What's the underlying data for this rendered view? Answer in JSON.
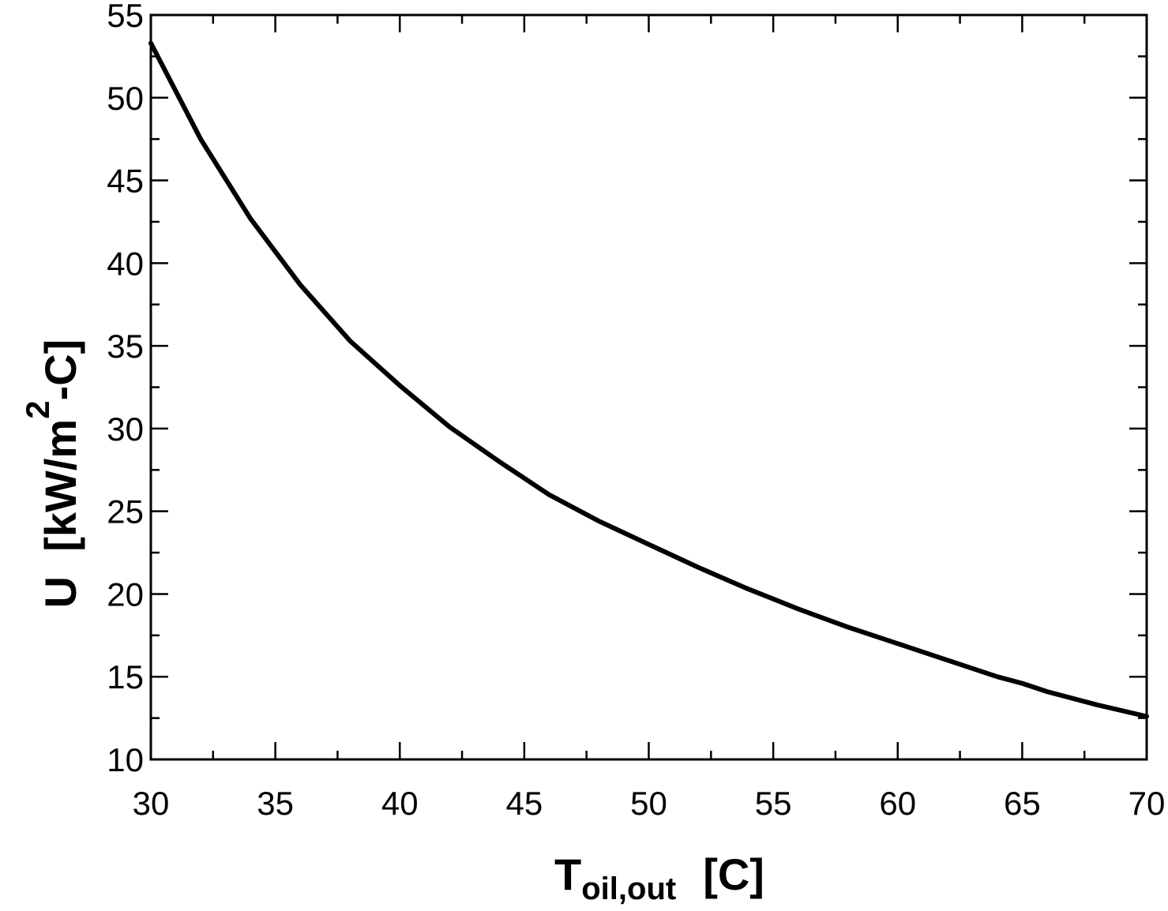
{
  "chart_data": {
    "type": "line",
    "title": "",
    "xlabel": {
      "main": "T",
      "subscript": "oil,out",
      "unit": "[C]"
    },
    "ylabel": {
      "prefix": "U  [kW/m",
      "superscript": "2",
      "suffix": "-C]"
    },
    "xlim": [
      30,
      70
    ],
    "ylim": [
      10,
      55
    ],
    "x_ticks": [
      30,
      35,
      40,
      45,
      50,
      55,
      60,
      65,
      70
    ],
    "y_ticks": [
      10,
      15,
      20,
      25,
      30,
      35,
      40,
      45,
      50,
      55
    ],
    "x_minor_step": 2.5,
    "y_minor_step": 2.5,
    "grid": false,
    "legend": "none",
    "series": [
      {
        "color": "#000000",
        "x": [
          30,
          32,
          34,
          35,
          36,
          38,
          40,
          42,
          44,
          45,
          46,
          48,
          50,
          52,
          54,
          55,
          56,
          58,
          60,
          62,
          64,
          65,
          66,
          68,
          70
        ],
        "y": [
          53.3,
          47.5,
          42.7,
          40.7,
          38.7,
          35.3,
          32.6,
          30.1,
          28.0,
          27.0,
          26.0,
          24.4,
          23.0,
          21.6,
          20.3,
          19.7,
          19.1,
          18.0,
          17.0,
          16.0,
          15.0,
          14.6,
          14.1,
          13.3,
          12.6
        ]
      }
    ]
  }
}
